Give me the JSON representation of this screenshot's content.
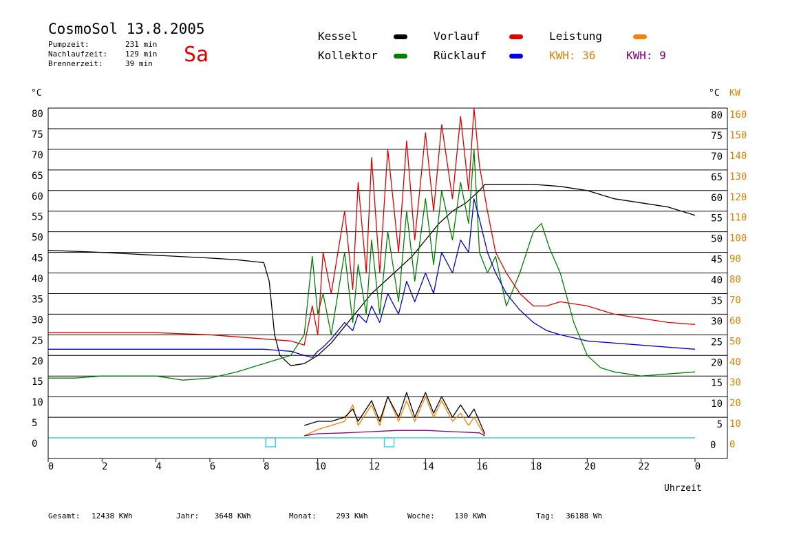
{
  "header": {
    "title": "CosmoSol 13.8.2005",
    "day": "Sa",
    "stats": [
      {
        "label": "Pumpzeit:",
        "value": "231 min"
      },
      {
        "label": "Nachlaufzeit:",
        "value": "129 min"
      },
      {
        "label": "Brennerzeit:",
        "value": "39 min"
      }
    ]
  },
  "legend": [
    {
      "label": "Kessel",
      "color": "#000000"
    },
    {
      "label": "Kollektor",
      "color": "#008000"
    },
    {
      "label": "Vorlauf",
      "color": "#e00000"
    },
    {
      "label": "Rücklauf",
      "color": "#0000e0"
    },
    {
      "label": "Leistung",
      "color": "#ff8000"
    }
  ],
  "kwh": [
    {
      "label": "KWH:",
      "value": "36",
      "color": "#e08000"
    },
    {
      "label": "KWH:",
      "value": "9",
      "color": "#800080"
    }
  ],
  "axes": {
    "left_unit": "°C",
    "right_unit_c": "°C",
    "right_unit_kw": "KW",
    "xlabel": "Uhrzeit"
  },
  "footer": [
    {
      "label": "Gesamt:",
      "value": "12438 KWh"
    },
    {
      "label": "Jahr:",
      "value": "3648 KWh"
    },
    {
      "label": "Monat:",
      "value": "293 KWh"
    },
    {
      "label": "Woche:",
      "value": "130 KWh"
    },
    {
      "label": "Tag:",
      "value": "36188 Wh"
    }
  ],
  "chart_data": {
    "type": "line",
    "title": "CosmoSol 13.8.2005",
    "xlabel": "Uhrzeit",
    "ylabel": "°C",
    "xlim": [
      0,
      24
    ],
    "ylim": [
      0,
      80
    ],
    "y2label": "KW",
    "y2lim": [
      0,
      160
    ],
    "grid": true,
    "x_ticks": [
      "0",
      "2",
      "4",
      "6",
      "8",
      "10",
      "12",
      "14",
      "16",
      "18",
      "20",
      "22",
      "0"
    ],
    "y_ticks": [
      "0",
      "5",
      "10",
      "15",
      "20",
      "25",
      "30",
      "35",
      "40",
      "45",
      "50",
      "55",
      "60",
      "65",
      "70",
      "75",
      "80"
    ],
    "y2_ticks": [
      "0",
      "10",
      "20",
      "30",
      "40",
      "50",
      "60",
      "70",
      "80",
      "90",
      "100",
      "110",
      "120",
      "130",
      "140",
      "150",
      "160"
    ],
    "series": [
      {
        "name": "Kessel",
        "color": "#000000",
        "x": [
          0,
          2,
          4,
          6,
          7,
          8,
          8.2,
          8.4,
          8.6,
          9,
          9.5,
          10,
          10.5,
          11,
          11.5,
          12,
          12.5,
          13,
          13.5,
          14,
          14.5,
          15,
          15.5,
          16,
          16.2,
          17,
          18,
          19,
          20,
          21,
          22,
          23,
          24
        ],
        "y": [
          45.5,
          45,
          44.3,
          43.6,
          43.2,
          42.5,
          38,
          25,
          20,
          17.5,
          18,
          20,
          23,
          27,
          31,
          35,
          38,
          41,
          44,
          48,
          52,
          55,
          57,
          60,
          61.5,
          61.5,
          61.5,
          61,
          60,
          58,
          57,
          56,
          54
        ]
      },
      {
        "name": "Kollektor",
        "color": "#008000",
        "x": [
          0,
          1,
          2,
          3,
          4,
          5,
          6,
          7,
          8,
          9,
          9.5,
          9.8,
          10,
          10.2,
          10.5,
          11,
          11.3,
          11.5,
          11.8,
          12,
          12.3,
          12.6,
          13,
          13.3,
          13.6,
          14,
          14.3,
          14.6,
          15,
          15.3,
          15.6,
          15.8,
          16,
          16.3,
          16.6,
          17,
          17.5,
          18,
          18.3,
          18.6,
          19,
          19.5,
          20,
          20.5,
          21,
          22,
          23,
          24
        ],
        "y": [
          14.5,
          14.5,
          15,
          15,
          15,
          14,
          14.5,
          16,
          18,
          20,
          25,
          44,
          30,
          35,
          25,
          45,
          28,
          42,
          30,
          48,
          30,
          50,
          33,
          55,
          38,
          58,
          42,
          60,
          48,
          62,
          52,
          70,
          45,
          40,
          44,
          32,
          40,
          50,
          52,
          46,
          40,
          28,
          20,
          17,
          16,
          15,
          15.5,
          16
        ]
      },
      {
        "name": "Vorlauf",
        "color": "#e00000",
        "x": [
          0,
          2,
          4,
          6,
          8,
          9,
          9.5,
          9.8,
          10,
          10.2,
          10.5,
          11,
          11.3,
          11.5,
          11.8,
          12,
          12.3,
          12.6,
          13,
          13.3,
          13.6,
          14,
          14.3,
          14.6,
          15,
          15.3,
          15.6,
          15.8,
          16,
          16.3,
          16.6,
          17,
          17.5,
          18,
          18.5,
          19,
          20,
          21,
          22,
          23,
          24
        ],
        "y": [
          25.5,
          25.5,
          25.5,
          25,
          24,
          23.5,
          22.5,
          32,
          25,
          45,
          35,
          55,
          36,
          62,
          40,
          68,
          40,
          70,
          45,
          72,
          48,
          74,
          55,
          76,
          58,
          78,
          60,
          80,
          66,
          55,
          45,
          40,
          35,
          32,
          32,
          33,
          32,
          30,
          29,
          28,
          27.5
        ]
      },
      {
        "name": "Rücklauf",
        "color": "#0000e0",
        "x": [
          0,
          2,
          4,
          6,
          8,
          9,
          9.5,
          9.8,
          10,
          10.2,
          10.5,
          11,
          11.3,
          11.5,
          11.8,
          12,
          12.3,
          12.6,
          13,
          13.3,
          13.6,
          14,
          14.3,
          14.6,
          15,
          15.3,
          15.6,
          15.8,
          16,
          16.3,
          16.6,
          17,
          17.5,
          18,
          18.5,
          19,
          20,
          21,
          22,
          23,
          24
        ],
        "y": [
          21.5,
          21.5,
          21.5,
          21.5,
          21.5,
          21,
          20,
          19.5,
          21,
          22,
          24,
          28,
          26,
          30,
          28,
          32,
          28,
          35,
          30,
          38,
          33,
          40,
          35,
          45,
          40,
          48,
          45,
          58,
          53,
          45,
          40,
          35,
          31,
          28,
          26,
          25,
          23.5,
          23,
          22.5,
          22,
          21.5
        ]
      },
      {
        "name": "Leistung",
        "color": "#ff8000",
        "x": [
          9.5,
          10,
          10.5,
          11,
          11.3,
          11.5,
          12,
          12.3,
          12.6,
          13,
          13.3,
          13.6,
          14,
          14.3,
          14.6,
          15,
          15.3,
          15.6,
          15.8,
          16.2
        ],
        "y": [
          0.5,
          2,
          3,
          4,
          8,
          3,
          8,
          3,
          10,
          4,
          9,
          4,
          10,
          5,
          9,
          4,
          6,
          3,
          5,
          0.5
        ]
      },
      {
        "name": "Kessel Leistung",
        "color": "#000000",
        "x": [
          9.5,
          10,
          10.5,
          11,
          11.3,
          11.5,
          12,
          12.3,
          12.6,
          13,
          13.3,
          13.6,
          14,
          14.3,
          14.6,
          15,
          15.3,
          15.6,
          15.8,
          16.2
        ],
        "y": [
          3,
          4,
          4,
          5,
          7,
          4,
          9,
          4,
          10,
          5,
          11,
          5,
          11,
          6,
          10,
          5,
          8,
          5,
          7,
          1
        ]
      },
      {
        "name": "Leistung2",
        "color": "#800080",
        "x": [
          9.5,
          10,
          11,
          12,
          13,
          14,
          15,
          16,
          16.2
        ],
        "y": [
          0.5,
          1,
          1.2,
          1.5,
          1.8,
          1.8,
          1.5,
          1.2,
          0.5
        ]
      }
    ]
  }
}
